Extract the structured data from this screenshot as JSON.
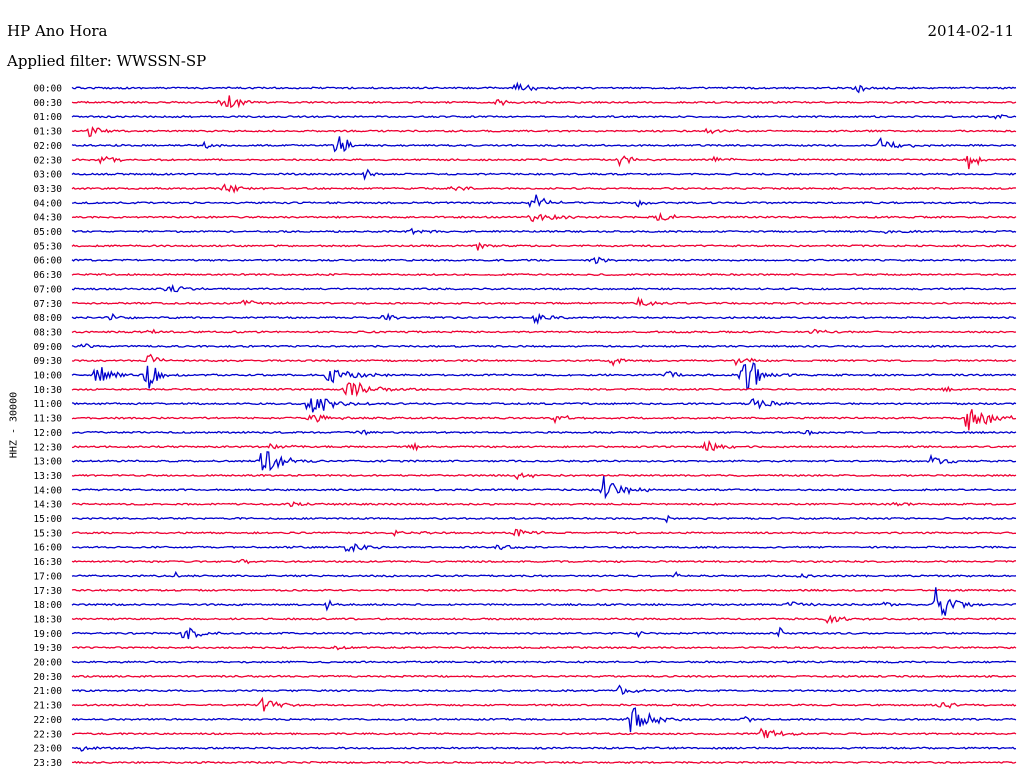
{
  "header": {
    "station": "HP Ano Hora",
    "date": "2014-02-11",
    "filter": "Applied filter: WWSSN-SP"
  },
  "chart_data": {
    "type": "line",
    "title": "HP Ano Hora",
    "ylabel": "HHZ - 30000",
    "colors": [
      "#0000cc",
      "#ee0033"
    ],
    "rows": [
      "00:00",
      "00:30",
      "01:00",
      "01:30",
      "02:00",
      "02:30",
      "03:00",
      "03:30",
      "04:00",
      "04:30",
      "05:00",
      "05:30",
      "06:00",
      "06:30",
      "07:00",
      "07:30",
      "08:00",
      "08:30",
      "09:00",
      "09:30",
      "10:00",
      "10:30",
      "11:00",
      "11:30",
      "12:00",
      "12:30",
      "13:00",
      "13:30",
      "14:00",
      "14:30",
      "15:00",
      "15:30",
      "16:00",
      "16:30",
      "17:00",
      "17:30",
      "18:00",
      "18:30",
      "19:00",
      "19:30",
      "20:00",
      "20:30",
      "21:00",
      "21:30",
      "22:00",
      "22:30",
      "23:00",
      "23:30"
    ],
    "events": [
      {
        "row": 0,
        "t": 0.47,
        "amp": 6,
        "dur": 0.03
      },
      {
        "row": 0,
        "t": 0.83,
        "amp": 5,
        "dur": 0.03
      },
      {
        "row": 1,
        "t": 0.158,
        "amp": 14,
        "dur": 0.03
      },
      {
        "row": 1,
        "t": 0.45,
        "amp": 3,
        "dur": 0.03
      },
      {
        "row": 2,
        "t": 0.98,
        "amp": 4,
        "dur": 0.01
      },
      {
        "row": 3,
        "t": 0.017,
        "amp": 10,
        "dur": 0.02
      },
      {
        "row": 3,
        "t": 0.67,
        "amp": 3,
        "dur": 0.04
      },
      {
        "row": 4,
        "t": 0.28,
        "amp": 18,
        "dur": 0.02
      },
      {
        "row": 4,
        "t": 0.853,
        "amp": 8,
        "dur": 0.04
      },
      {
        "row": 4,
        "t": 0.14,
        "amp": 4,
        "dur": 0.02
      },
      {
        "row": 5,
        "t": 0.03,
        "amp": 4,
        "dur": 0.04
      },
      {
        "row": 5,
        "t": 0.58,
        "amp": 9,
        "dur": 0.02
      },
      {
        "row": 5,
        "t": 0.95,
        "amp": 12,
        "dur": 0.02
      },
      {
        "row": 5,
        "t": 0.68,
        "amp": 3,
        "dur": 0.03
      },
      {
        "row": 6,
        "t": 0.31,
        "amp": 6,
        "dur": 0.02
      },
      {
        "row": 7,
        "t": 0.16,
        "amp": 5,
        "dur": 0.04
      },
      {
        "row": 7,
        "t": 0.4,
        "amp": 3,
        "dur": 0.03
      },
      {
        "row": 8,
        "t": 0.486,
        "amp": 14,
        "dur": 0.03
      },
      {
        "row": 8,
        "t": 0.6,
        "amp": 5,
        "dur": 0.02
      },
      {
        "row": 9,
        "t": 0.486,
        "amp": 6,
        "dur": 0.06
      },
      {
        "row": 9,
        "t": 0.62,
        "amp": 4,
        "dur": 0.04
      },
      {
        "row": 10,
        "t": 0.36,
        "amp": 3,
        "dur": 0.03
      },
      {
        "row": 10,
        "t": 0.86,
        "amp": 3,
        "dur": 0.03
      },
      {
        "row": 11,
        "t": 0.43,
        "amp": 5,
        "dur": 0.02
      },
      {
        "row": 12,
        "t": 0.55,
        "amp": 4,
        "dur": 0.03
      },
      {
        "row": 14,
        "t": 0.1,
        "amp": 4,
        "dur": 0.04
      },
      {
        "row": 15,
        "t": 0.18,
        "amp": 4,
        "dur": 0.04
      },
      {
        "row": 15,
        "t": 0.6,
        "amp": 5,
        "dur": 0.03
      },
      {
        "row": 16,
        "t": 0.04,
        "amp": 4,
        "dur": 0.03
      },
      {
        "row": 16,
        "t": 0.33,
        "amp": 5,
        "dur": 0.02
      },
      {
        "row": 16,
        "t": 0.49,
        "amp": 6,
        "dur": 0.03
      },
      {
        "row": 17,
        "t": 0.08,
        "amp": 3,
        "dur": 0.03
      },
      {
        "row": 17,
        "t": 0.78,
        "amp": 3,
        "dur": 0.03
      },
      {
        "row": 18,
        "t": 0.01,
        "amp": 4,
        "dur": 0.02
      },
      {
        "row": 19,
        "t": 0.57,
        "amp": 6,
        "dur": 0.03
      },
      {
        "row": 19,
        "t": 0.7,
        "amp": 6,
        "dur": 0.03
      },
      {
        "row": 19,
        "t": 0.079,
        "amp": 10,
        "dur": 0.02
      },
      {
        "row": 20,
        "t": 0.025,
        "amp": 12,
        "dur": 0.03
      },
      {
        "row": 20,
        "t": 0.079,
        "amp": 22,
        "dur": 0.02
      },
      {
        "row": 20,
        "t": 0.27,
        "amp": 10,
        "dur": 0.05
      },
      {
        "row": 20,
        "t": 0.71,
        "amp": 30,
        "dur": 0.03
      },
      {
        "row": 20,
        "t": 0.63,
        "amp": 4,
        "dur": 0.04
      },
      {
        "row": 21,
        "t": 0.29,
        "amp": 9,
        "dur": 0.06
      },
      {
        "row": 21,
        "t": 0.92,
        "amp": 3,
        "dur": 0.04
      },
      {
        "row": 22,
        "t": 0.25,
        "amp": 15,
        "dur": 0.05
      },
      {
        "row": 22,
        "t": 0.72,
        "amp": 6,
        "dur": 0.04
      },
      {
        "row": 23,
        "t": 0.25,
        "amp": 6,
        "dur": 0.04
      },
      {
        "row": 23,
        "t": 0.51,
        "amp": 5,
        "dur": 0.03
      },
      {
        "row": 23,
        "t": 0.947,
        "amp": 14,
        "dur": 0.05
      },
      {
        "row": 24,
        "t": 0.3,
        "amp": 3,
        "dur": 0.03
      },
      {
        "row": 24,
        "t": 0.776,
        "amp": 6,
        "dur": 0.02
      },
      {
        "row": 25,
        "t": 0.21,
        "amp": 5,
        "dur": 0.03
      },
      {
        "row": 25,
        "t": 0.36,
        "amp": 6,
        "dur": 0.02
      },
      {
        "row": 25,
        "t": 0.67,
        "amp": 8,
        "dur": 0.03
      },
      {
        "row": 26,
        "t": 0.2,
        "amp": 14,
        "dur": 0.04
      },
      {
        "row": 26,
        "t": 0.91,
        "amp": 6,
        "dur": 0.03
      },
      {
        "row": 27,
        "t": 0.47,
        "amp": 5,
        "dur": 0.04
      },
      {
        "row": 28,
        "t": 0.563,
        "amp": 14,
        "dur": 0.04
      },
      {
        "row": 29,
        "t": 0.23,
        "amp": 4,
        "dur": 0.03
      },
      {
        "row": 29,
        "t": 0.87,
        "amp": 3,
        "dur": 0.03
      },
      {
        "row": 30,
        "t": 0.627,
        "amp": 7,
        "dur": 0.01
      },
      {
        "row": 31,
        "t": 0.47,
        "amp": 6,
        "dur": 0.03
      },
      {
        "row": 31,
        "t": 0.34,
        "amp": 3,
        "dur": 0.04
      },
      {
        "row": 32,
        "t": 0.29,
        "amp": 6,
        "dur": 0.04
      },
      {
        "row": 32,
        "t": 0.45,
        "amp": 7,
        "dur": 0.03
      },
      {
        "row": 33,
        "t": 0.18,
        "amp": 3,
        "dur": 0.02
      },
      {
        "row": 34,
        "t": 0.11,
        "amp": 4,
        "dur": 0.01
      },
      {
        "row": 34,
        "t": 0.64,
        "amp": 4,
        "dur": 0.01
      },
      {
        "row": 34,
        "t": 0.77,
        "amp": 4,
        "dur": 0.02
      },
      {
        "row": 36,
        "t": 0.27,
        "amp": 6,
        "dur": 0.01
      },
      {
        "row": 36,
        "t": 0.915,
        "amp": 25,
        "dur": 0.03
      },
      {
        "row": 36,
        "t": 0.76,
        "amp": 4,
        "dur": 0.03
      },
      {
        "row": 36,
        "t": 0.86,
        "amp": 3,
        "dur": 0.03
      },
      {
        "row": 37,
        "t": 0.8,
        "amp": 5,
        "dur": 0.03
      },
      {
        "row": 38,
        "t": 0.118,
        "amp": 12,
        "dur": 0.03
      },
      {
        "row": 38,
        "t": 0.6,
        "amp": 4,
        "dur": 0.01
      },
      {
        "row": 38,
        "t": 0.75,
        "amp": 6,
        "dur": 0.01
      },
      {
        "row": 39,
        "t": 0.28,
        "amp": 3,
        "dur": 0.03
      },
      {
        "row": 42,
        "t": 0.58,
        "amp": 5,
        "dur": 0.03
      },
      {
        "row": 43,
        "t": 0.2,
        "amp": 9,
        "dur": 0.03
      },
      {
        "row": 43,
        "t": 0.92,
        "amp": 8,
        "dur": 0.03
      },
      {
        "row": 44,
        "t": 0.592,
        "amp": 16,
        "dur": 0.04
      },
      {
        "row": 44,
        "t": 0.71,
        "amp": 3,
        "dur": 0.03
      },
      {
        "row": 45,
        "t": 0.73,
        "amp": 6,
        "dur": 0.04
      },
      {
        "row": 46,
        "t": 0.01,
        "amp": 3,
        "dur": 0.02
      }
    ]
  }
}
